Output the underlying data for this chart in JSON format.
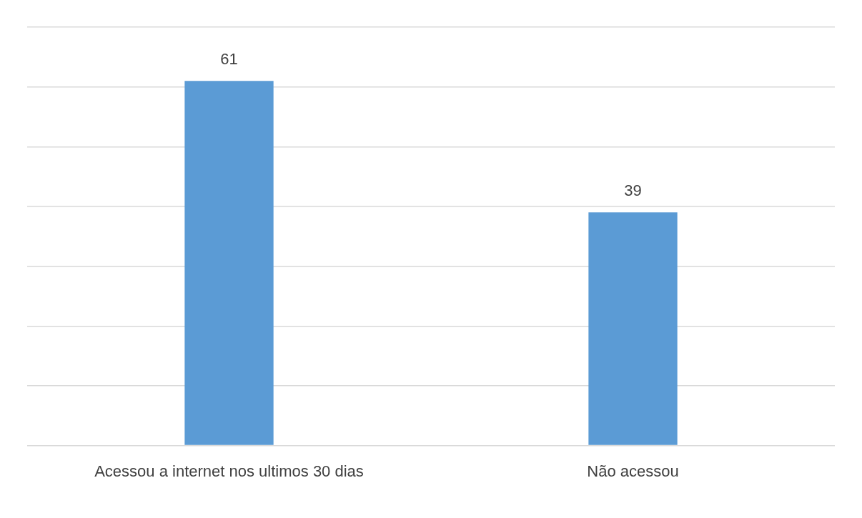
{
  "chart_data": {
    "type": "bar",
    "categories": [
      "Acessou a internet nos ultimos 30 dias",
      "Não acessou"
    ],
    "values": [
      61,
      39
    ],
    "color": "#5b9bd5",
    "ylim": [
      0,
      70
    ],
    "yticks": [
      {
        "value": 0,
        "label": null
      },
      {
        "value": 10,
        "label": null
      },
      {
        "value": 20,
        "label": null
      },
      {
        "value": 30,
        "label": null
      },
      {
        "value": 40,
        "label": null
      },
      {
        "value": 50,
        "label": null
      },
      {
        "value": 60,
        "label": null
      },
      {
        "value": 70,
        "label": null
      }
    ],
    "tick_labels": "x",
    "grid": "y",
    "data_labels": true,
    "legend": false
  }
}
